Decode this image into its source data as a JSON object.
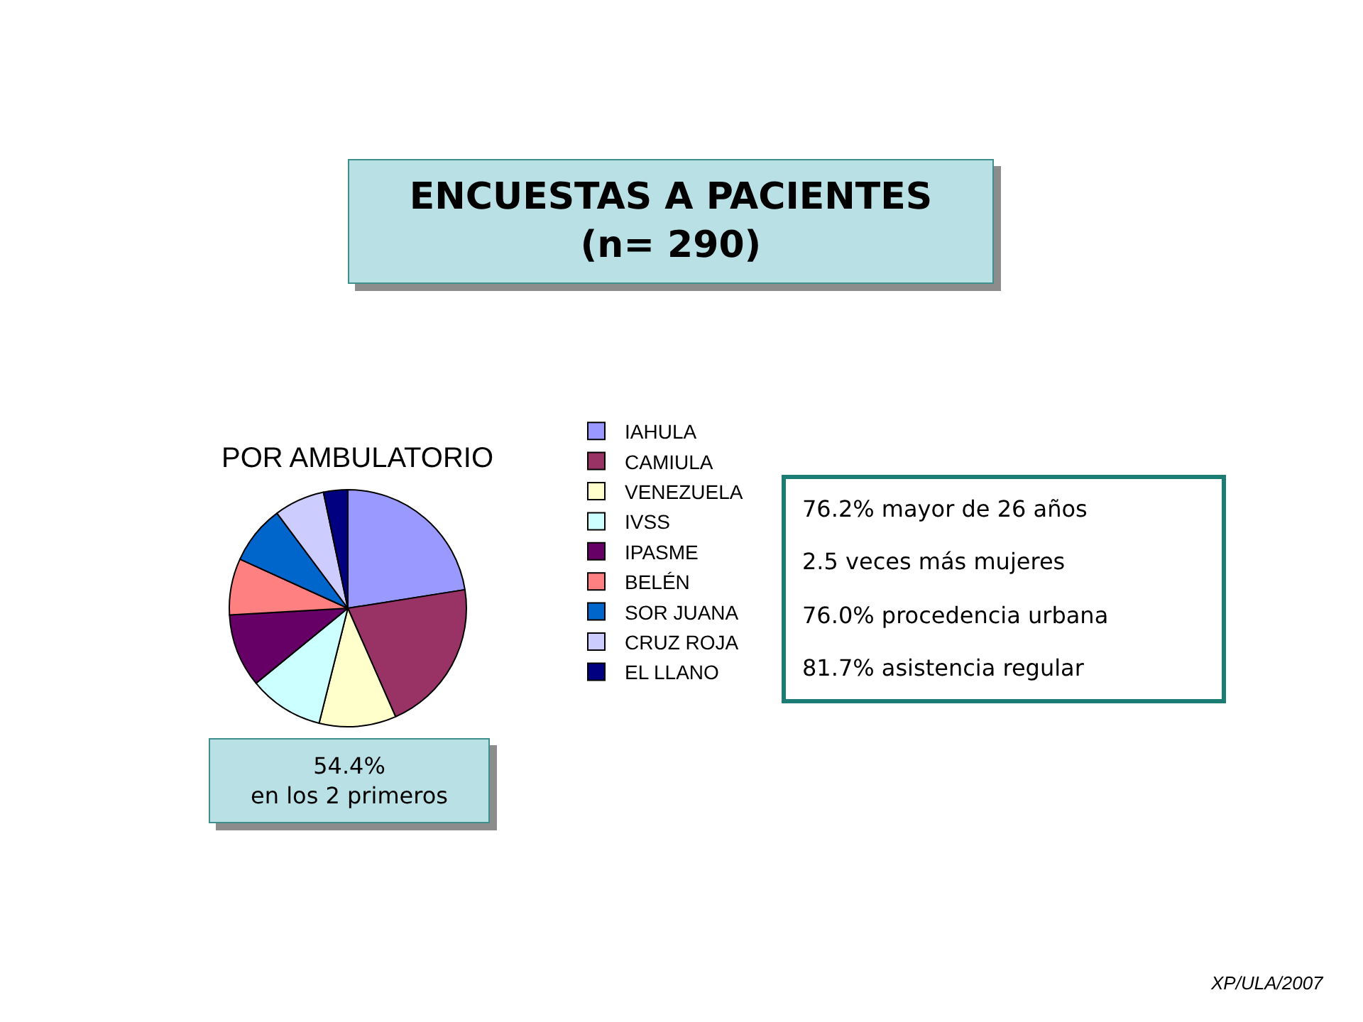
{
  "chart_data": {
    "type": "pie",
    "title": "ENCUESTAS A PACIENTES\n(n= 290)",
    "subtitle": "POR AMBULATORIO",
    "categories": [
      "IAHULA",
      "CAMIULA",
      "VENEZUELA",
      "IVSS",
      "IPASME",
      "BELÉN",
      "SOR JUANA",
      "CRUZ ROJA",
      "EL LLANO"
    ],
    "values": [
      22.5,
      20.9,
      10.5,
      10.2,
      10.0,
      7.7,
      8.0,
      6.9,
      3.3
    ],
    "colors": [
      "#9999ff",
      "#993366",
      "#ffffcc",
      "#ccffff",
      "#660066",
      "#ff8080",
      "#0066cc",
      "#ccccff",
      "#000080"
    ],
    "legend": "right",
    "annotations": [
      "54.4%\nen los 2 primeros",
      "76.2% mayor de 26 años",
      "2.5 veces más mujeres",
      "76.0% procedencia urbana",
      "81.7% asistencia regular",
      "XP/ULA/2007"
    ]
  }
}
